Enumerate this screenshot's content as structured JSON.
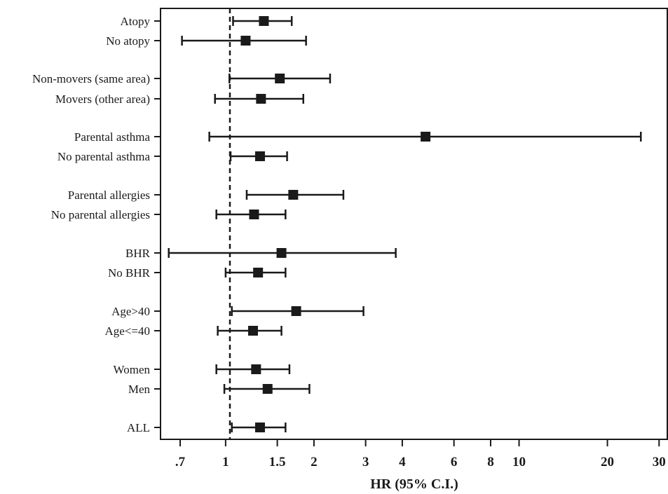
{
  "chart_data": {
    "type": "forest",
    "xlabel": "HR (95% C.I.)",
    "x_scale": "log",
    "xlim": [
      0.6,
      32
    ],
    "x_ticks": [
      {
        "value": 0.7,
        "label": ".7"
      },
      {
        "value": 1,
        "label": "1"
      },
      {
        "value": 1.5,
        "label": "1.5"
      },
      {
        "value": 2,
        "label": "2"
      },
      {
        "value": 3,
        "label": "3"
      },
      {
        "value": 4,
        "label": "4"
      },
      {
        "value": 6,
        "label": "6"
      },
      {
        "value": 8,
        "label": "8"
      },
      {
        "value": 10,
        "label": "10"
      },
      {
        "value": 20,
        "label": "20"
      },
      {
        "value": 30,
        "label": "30"
      }
    ],
    "reference_line": 1,
    "rows": [
      {
        "label": "Atopy",
        "hr": 1.35,
        "lo": 1.06,
        "hi": 1.68
      },
      {
        "label": "No atopy",
        "hr": 1.17,
        "lo": 0.71,
        "hi": 1.88
      },
      {
        "label": "Non-movers (same area)",
        "hr": 1.53,
        "lo": 1.03,
        "hi": 2.27
      },
      {
        "label": "Movers (other area)",
        "hr": 1.32,
        "lo": 0.92,
        "hi": 1.84
      },
      {
        "label": "Parental asthma",
        "hr": 4.8,
        "lo": 0.88,
        "hi": 26
      },
      {
        "label": "No parental asthma",
        "hr": 1.31,
        "lo": 1.04,
        "hi": 1.62
      },
      {
        "label": "Parental allergies",
        "hr": 1.7,
        "lo": 1.18,
        "hi": 2.52
      },
      {
        "label": "No parental allergies",
        "hr": 1.25,
        "lo": 0.93,
        "hi": 1.6
      },
      {
        "label": "BHR",
        "hr": 1.55,
        "lo": 0.64,
        "hi": 3.8
      },
      {
        "label": "No BHR",
        "hr": 1.29,
        "lo": 1.0,
        "hi": 1.6
      },
      {
        "label": "Age>40",
        "hr": 1.74,
        "lo": 1.05,
        "hi": 2.95
      },
      {
        "label": "Age<=40",
        "hr": 1.24,
        "lo": 0.94,
        "hi": 1.55
      },
      {
        "label": "Women",
        "hr": 1.27,
        "lo": 0.93,
        "hi": 1.65
      },
      {
        "label": "Men",
        "hr": 1.39,
        "lo": 0.99,
        "hi": 1.93
      },
      {
        "label": "ALL",
        "hr": 1.31,
        "lo": 1.05,
        "hi": 1.6
      }
    ]
  }
}
